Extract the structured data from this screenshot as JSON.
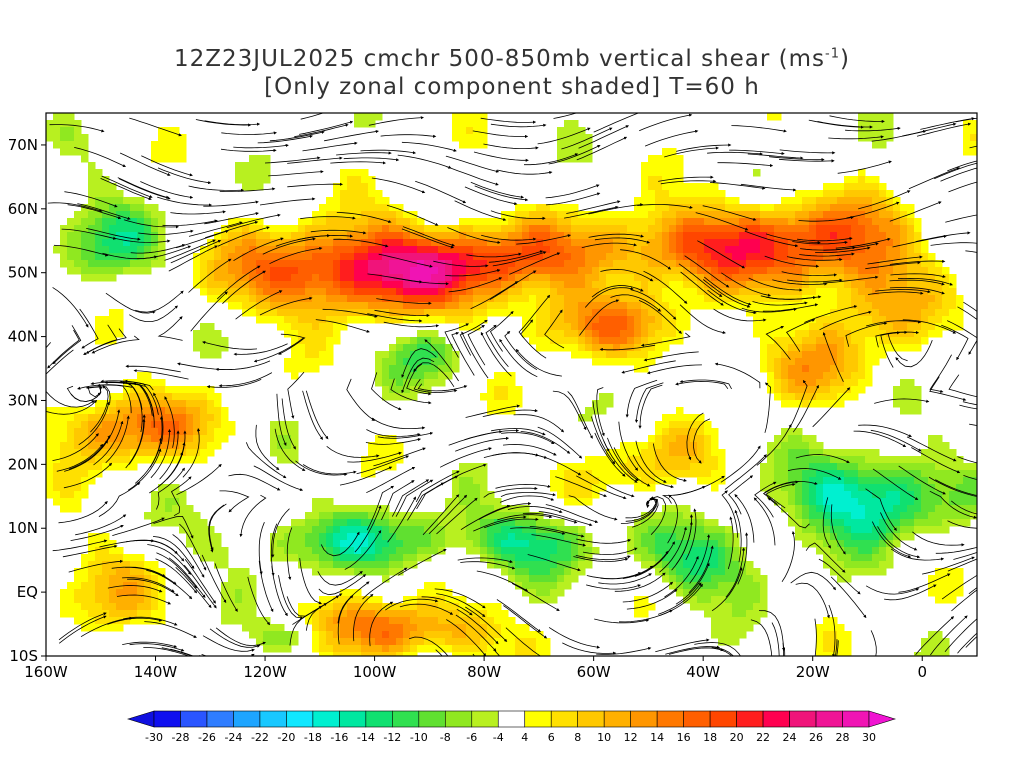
{
  "title": {
    "line1_prefix": "12Z23JUL2025 cmchr 500-850mb vertical shear (ms",
    "line1_exp": "-1",
    "line1_suffix": ")",
    "line2": "[Only zonal component shaded] T=60 h"
  },
  "map": {
    "lon_range": [
      -160,
      10
    ],
    "lat_range": [
      -10,
      75
    ],
    "lat_labels": [
      "70N",
      "60N",
      "50N",
      "40N",
      "30N",
      "20N",
      "10N",
      "EQ",
      "10S"
    ],
    "lat_values": [
      70,
      60,
      50,
      40,
      30,
      20,
      10,
      0,
      -10
    ],
    "lon_labels": [
      "160W",
      "140W",
      "120W",
      "100W",
      "80W",
      "60W",
      "40W",
      "20W",
      "0"
    ],
    "lon_values": [
      -160,
      -140,
      -120,
      -100,
      -80,
      -60,
      -40,
      -20,
      0
    ],
    "shaded_variable": "zonal component of vertical shear",
    "streamlines": true,
    "coastlines": true
  },
  "colorbar": {
    "labels": [
      "-30",
      "-28",
      "-26",
      "-24",
      "-22",
      "-20",
      "-18",
      "-16",
      "-14",
      "-12",
      "-10",
      "-8",
      "-6",
      "-4",
      "4",
      "6",
      "8",
      "10",
      "12",
      "14",
      "16",
      "18",
      "20",
      "22",
      "24",
      "26",
      "28",
      "30"
    ],
    "colors": [
      "#0f0ff0",
      "#2a55ff",
      "#2f7dff",
      "#1ea5ff",
      "#18c8ff",
      "#10e8ff",
      "#00f0d0",
      "#00e8a0",
      "#10e070",
      "#30e050",
      "#60e030",
      "#90e820",
      "#b8f020",
      "#ffffff",
      "#ffff00",
      "#ffe000",
      "#ffc800",
      "#ffb000",
      "#ff9600",
      "#ff7800",
      "#ff5f00",
      "#ff4600",
      "#ff1e1e",
      "#ff0050",
      "#f0147a",
      "#f01496",
      "#f014b4"
    ],
    "low_arrow_color": "#1010e0",
    "high_arrow_color": "#f014d2"
  }
}
